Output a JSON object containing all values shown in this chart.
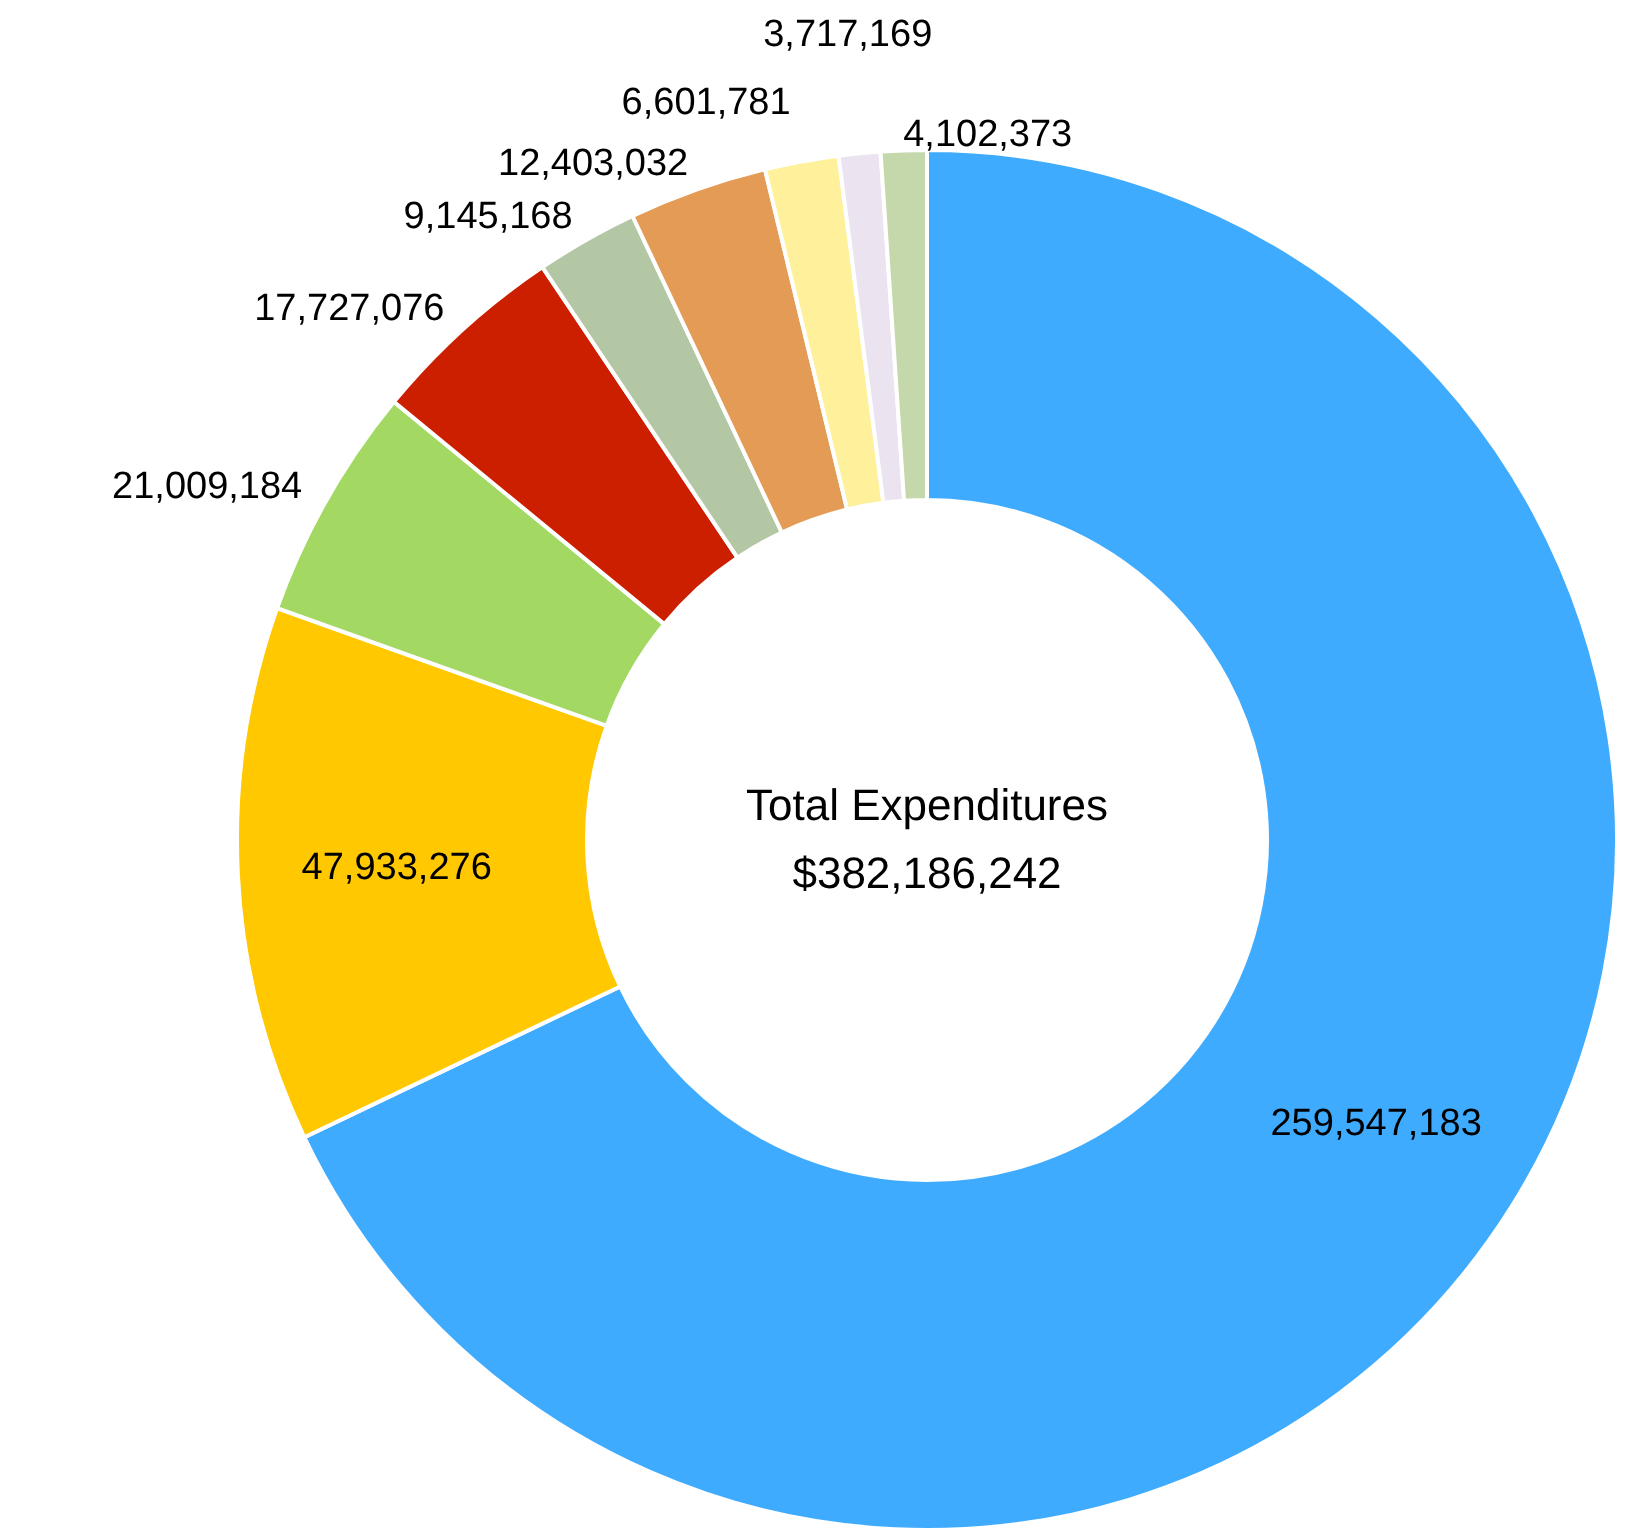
{
  "chart_data": {
    "type": "donut",
    "categories": [
      null,
      null,
      null,
      null,
      null,
      null,
      null,
      null,
      null
    ],
    "values": [
      259547183,
      47933276,
      21009184,
      17727076,
      9145168,
      12403032,
      6601781,
      3717169,
      4102373
    ],
    "colors": [
      "#3fabfe",
      "#ffc800",
      "#a3d963",
      "#cc1f00",
      "#b4c7a4",
      "#e49b55",
      "#fff09c",
      "#ebe3f0",
      "#c5d8ac"
    ],
    "data_labels": true,
    "value_labels": [
      "259,547,183",
      "47,933,276",
      "21,009,184",
      "17,727,076",
      "9,145,168",
      "12,403,032",
      "6,601,781",
      "3,717,169",
      "4,102,373"
    ],
    "legend": false,
    "annotations": [
      "Total Expenditures",
      "$382,186,242"
    ]
  }
}
